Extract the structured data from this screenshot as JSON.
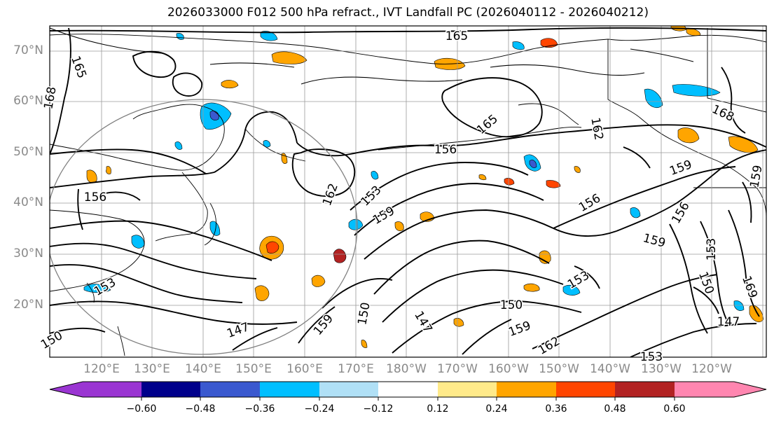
{
  "title": "2026033000 F012 500 hPa refract., IVT Landfall PC (2026040112 - 2026040212)",
  "map": {
    "lat_labels": [
      "70°N",
      "60°N",
      "50°N",
      "40°N",
      "30°N",
      "20°N"
    ],
    "lon_labels": [
      "120°E",
      "130°E",
      "140°E",
      "150°E",
      "160°E",
      "170°E",
      "180°W",
      "170°W",
      "160°W",
      "150°W",
      "140°W",
      "130°W",
      "120°W"
    ],
    "contour_labels": [
      "165",
      "165",
      "168",
      "165",
      "162",
      "159",
      "156",
      "156",
      "153",
      "159",
      "156",
      "162",
      "153",
      "159",
      "150",
      "147",
      "159",
      "150",
      "147",
      "153",
      "150",
      "159",
      "162",
      "153",
      "156",
      "159",
      "168",
      "150",
      "147",
      "153",
      "169"
    ]
  },
  "colorbar": {
    "ticks": [
      "−0.60",
      "−0.48",
      "−0.36",
      "−0.24",
      "−0.12",
      "0.12",
      "0.24",
      "0.36",
      "0.48",
      "0.60"
    ],
    "colors": [
      "#9a35d2",
      "#00008b",
      "#3a59cf",
      "#00bfff",
      "#b0e0f6",
      "#ffffff",
      "#ffea8a",
      "#ffa500",
      "#ff4500",
      "#b22222",
      "#ff86b0"
    ]
  }
}
